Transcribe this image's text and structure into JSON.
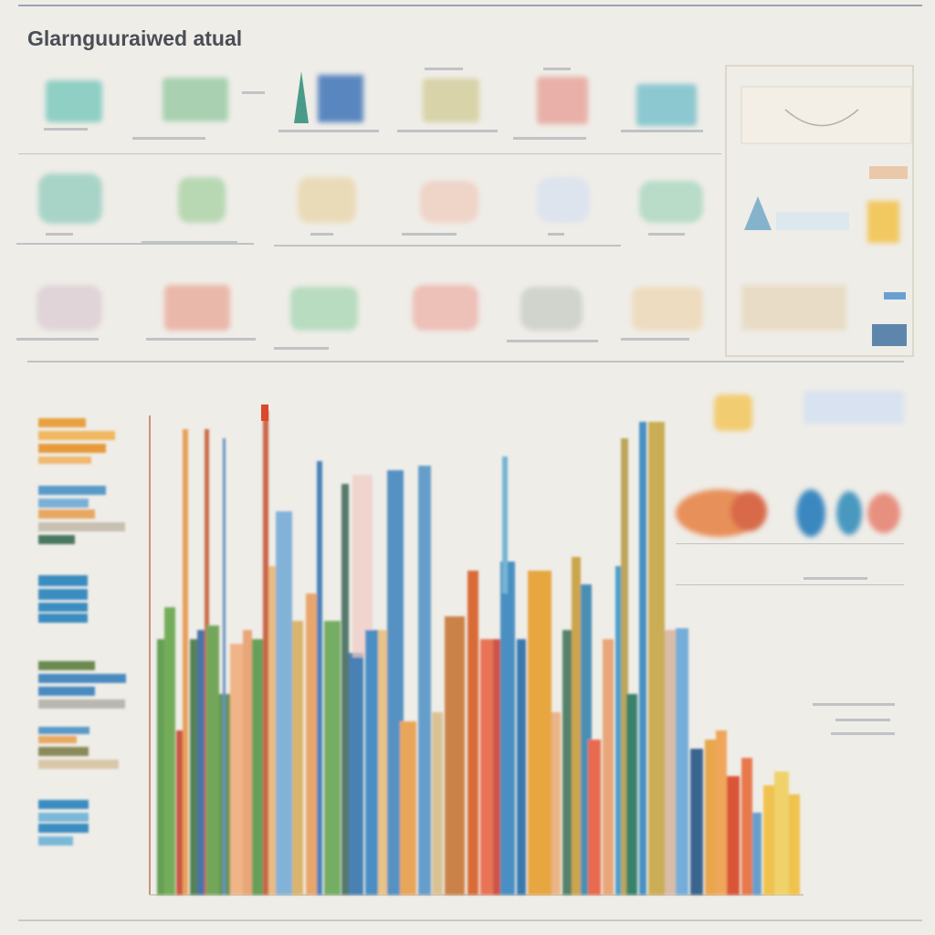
{
  "header": {
    "title": "Glarnguuraiwed atual"
  }
}
